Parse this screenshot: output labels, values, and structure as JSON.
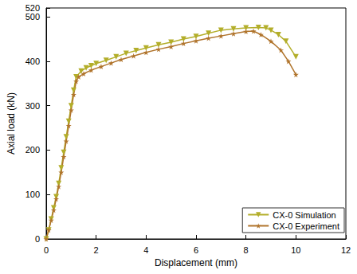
{
  "chart_data": {
    "type": "line",
    "x_label": "Displacement (mm)",
    "y_label": "Axial load (kN)",
    "xlim": [
      0,
      12
    ],
    "xticks": [
      0,
      2,
      4,
      6,
      8,
      10,
      12
    ],
    "ylim": [
      0,
      520
    ],
    "yticks": [
      0,
      100,
      200,
      300,
      400,
      500
    ],
    "grid": false,
    "legend": "bottom-right",
    "series": [
      {
        "name": "CX-0 Simulation",
        "color": "#b3ae2a",
        "marker": "triangle-down",
        "line_style": "solid",
        "x": [
          0,
          0.1,
          0.2,
          0.3,
          0.4,
          0.5,
          0.6,
          0.7,
          0.8,
          0.9,
          1.0,
          1.1,
          1.2,
          1.4,
          1.6,
          1.8,
          2,
          2.4,
          2.8,
          3.2,
          3.6,
          4,
          4.5,
          5,
          5.5,
          6,
          6.5,
          7,
          7.5,
          8,
          8.5,
          8.8,
          9,
          9.3,
          9.6,
          10
        ],
        "values": [
          0,
          20,
          45,
          70,
          95,
          125,
          160,
          195,
          230,
          265,
          300,
          335,
          365,
          378,
          385,
          390,
          395,
          402,
          410,
          418,
          424,
          430,
          437,
          443,
          450,
          456,
          463,
          470,
          473,
          475,
          476,
          475,
          470,
          460,
          445,
          410
        ]
      },
      {
        "name": "CX-0 Experiment",
        "color": "#b0742c",
        "marker": "star",
        "line_style": "solid",
        "x": [
          0,
          0.1,
          0.2,
          0.3,
          0.4,
          0.5,
          0.6,
          0.7,
          0.8,
          0.9,
          1.0,
          1.1,
          1.2,
          1.3,
          1.5,
          1.8,
          2.2,
          2.6,
          3,
          3.5,
          4,
          4.5,
          5,
          5.5,
          6,
          6.5,
          7,
          7.5,
          8,
          8.3,
          8.6,
          9,
          9.4,
          9.7,
          10
        ],
        "values": [
          0,
          20,
          42,
          65,
          90,
          118,
          150,
          185,
          220,
          255,
          290,
          325,
          355,
          365,
          372,
          380,
          388,
          396,
          404,
          412,
          420,
          427,
          433,
          440,
          446,
          452,
          457,
          462,
          467,
          468,
          460,
          445,
          425,
          400,
          370
        ]
      }
    ]
  }
}
